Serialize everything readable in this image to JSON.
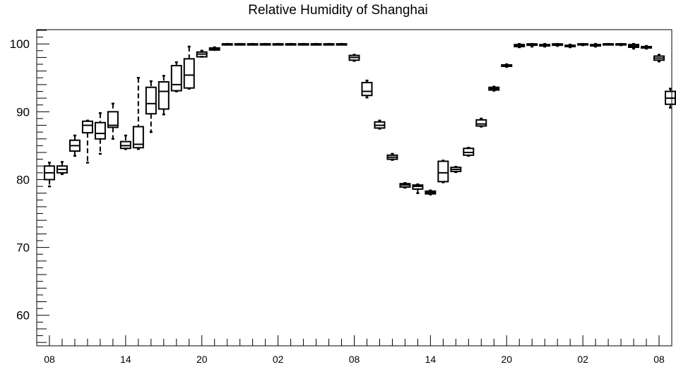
{
  "chart_data": {
    "type": "boxplot",
    "title": "Relative Humidity of Shanghai",
    "xlabel": "",
    "ylabel": "",
    "ylim": [
      55.5,
      102.1
    ],
    "y_ticks": [
      60,
      70,
      80,
      90,
      100
    ],
    "x_tick_labels": [
      "08",
      "14",
      "20",
      "02",
      "08",
      "14",
      "20",
      "02",
      "08"
    ],
    "x_tick_hours": [
      0,
      6,
      12,
      18,
      24,
      30,
      36,
      42,
      48
    ],
    "xlim": [
      -1,
      49
    ],
    "grid": false,
    "legend": "none",
    "colors": {
      "stroke": "#000000",
      "background": "#ffffff"
    },
    "boxes": [
      {
        "h": 0,
        "min": 79.0,
        "q1": 80.0,
        "median": 81.0,
        "q3": 82.0,
        "max": 82.5
      },
      {
        "h": 1,
        "min": 80.8,
        "q1": 81.0,
        "median": 81.5,
        "q3": 82.0,
        "max": 82.6
      },
      {
        "h": 2,
        "min": 83.5,
        "q1": 84.2,
        "median": 85.0,
        "q3": 85.8,
        "max": 86.5
      },
      {
        "h": 3,
        "min": 82.5,
        "q1": 86.9,
        "median": 88.0,
        "q3": 88.6,
        "max": 88.7
      },
      {
        "h": 4,
        "min": 83.8,
        "q1": 86.0,
        "median": 86.8,
        "q3": 88.4,
        "max": 89.8
      },
      {
        "h": 5,
        "min": 86.0,
        "q1": 87.7,
        "median": 88.0,
        "q3": 90.0,
        "max": 91.2
      },
      {
        "h": 6,
        "min": 84.5,
        "q1": 84.6,
        "median": 85.0,
        "q3": 85.6,
        "max": 86.5
      },
      {
        "h": 7,
        "min": 84.5,
        "q1": 84.7,
        "median": 85.2,
        "q3": 87.8,
        "max": 95.0
      },
      {
        "h": 8,
        "min": 87.0,
        "q1": 89.7,
        "median": 91.2,
        "q3": 93.6,
        "max": 94.5
      },
      {
        "h": 9,
        "min": 89.6,
        "q1": 90.4,
        "median": 93.0,
        "q3": 94.4,
        "max": 95.3
      },
      {
        "h": 10,
        "min": 93.0,
        "q1": 93.1,
        "median": 94.0,
        "q3": 96.8,
        "max": 97.3
      },
      {
        "h": 11,
        "min": 93.4,
        "q1": 93.5,
        "median": 95.4,
        "q3": 97.8,
        "max": 99.6
      },
      {
        "h": 12,
        "min": 98.1,
        "q1": 98.1,
        "median": 98.5,
        "q3": 98.8,
        "max": 99.0
      },
      {
        "h": 13,
        "min": 99.1,
        "q1": 99.1,
        "median": 99.3,
        "q3": 99.4,
        "max": 99.5
      },
      {
        "h": 14,
        "min": 100,
        "q1": 100,
        "median": 100,
        "q3": 100,
        "max": 100
      },
      {
        "h": 15,
        "min": 100,
        "q1": 100,
        "median": 100,
        "q3": 100,
        "max": 100
      },
      {
        "h": 16,
        "min": 100,
        "q1": 100,
        "median": 100,
        "q3": 100,
        "max": 100
      },
      {
        "h": 17,
        "min": 100,
        "q1": 100,
        "median": 100,
        "q3": 100,
        "max": 100
      },
      {
        "h": 18,
        "min": 100,
        "q1": 100,
        "median": 100,
        "q3": 100,
        "max": 100
      },
      {
        "h": 19,
        "min": 100,
        "q1": 100,
        "median": 100,
        "q3": 100,
        "max": 100
      },
      {
        "h": 20,
        "min": 100,
        "q1": 100,
        "median": 100,
        "q3": 100,
        "max": 100
      },
      {
        "h": 21,
        "min": 100,
        "q1": 100,
        "median": 100,
        "q3": 100,
        "max": 100
      },
      {
        "h": 22,
        "min": 100,
        "q1": 100,
        "median": 100,
        "q3": 100,
        "max": 100
      },
      {
        "h": 23,
        "min": 100,
        "q1": 100,
        "median": 100,
        "q3": 100,
        "max": 100
      },
      {
        "h": 24,
        "min": 97.5,
        "q1": 97.6,
        "median": 98.0,
        "q3": 98.3,
        "max": 98.4
      },
      {
        "h": 25,
        "min": 92.1,
        "q1": 92.4,
        "median": 93.0,
        "q3": 94.3,
        "max": 94.6
      },
      {
        "h": 26,
        "min": 87.5,
        "q1": 87.6,
        "median": 88.0,
        "q3": 88.5,
        "max": 88.7
      },
      {
        "h": 27,
        "min": 82.9,
        "q1": 83.0,
        "median": 83.3,
        "q3": 83.6,
        "max": 83.8
      },
      {
        "h": 28,
        "min": 78.8,
        "q1": 78.9,
        "median": 79.2,
        "q3": 79.4,
        "max": 79.5
      },
      {
        "h": 29,
        "min": 78.0,
        "q1": 78.6,
        "median": 79.0,
        "q3": 79.2,
        "max": 79.3
      },
      {
        "h": 30,
        "min": 77.8,
        "q1": 77.9,
        "median": 78.1,
        "q3": 78.3,
        "max": 78.4
      },
      {
        "h": 31,
        "min": 79.6,
        "q1": 79.7,
        "median": 81.0,
        "q3": 82.7,
        "max": 82.8
      },
      {
        "h": 32,
        "min": 81.1,
        "q1": 81.2,
        "median": 81.5,
        "q3": 81.8,
        "max": 81.9
      },
      {
        "h": 33,
        "min": 83.5,
        "q1": 83.6,
        "median": 84.0,
        "q3": 84.6,
        "max": 84.7
      },
      {
        "h": 34,
        "min": 87.8,
        "q1": 87.9,
        "median": 88.2,
        "q3": 88.8,
        "max": 89.0
      },
      {
        "h": 35,
        "min": 93.1,
        "q1": 93.2,
        "median": 93.4,
        "q3": 93.6,
        "max": 93.7
      },
      {
        "h": 36,
        "min": 96.6,
        "q1": 96.7,
        "median": 96.8,
        "q3": 96.9,
        "max": 97.0
      },
      {
        "h": 37,
        "min": 99.5,
        "q1": 99.6,
        "median": 99.8,
        "q3": 99.9,
        "max": 100
      },
      {
        "h": 38,
        "min": 99.6,
        "q1": 99.8,
        "median": 99.9,
        "q3": 100,
        "max": 100
      },
      {
        "h": 39,
        "min": 99.6,
        "q1": 99.7,
        "median": 99.8,
        "q3": 99.9,
        "max": 100
      },
      {
        "h": 40,
        "min": 99.7,
        "q1": 99.8,
        "median": 99.9,
        "q3": 100,
        "max": 100
      },
      {
        "h": 41,
        "min": 99.5,
        "q1": 99.6,
        "median": 99.7,
        "q3": 99.8,
        "max": 99.9
      },
      {
        "h": 42,
        "min": 99.8,
        "q1": 99.9,
        "median": 100,
        "q3": 100,
        "max": 100
      },
      {
        "h": 43,
        "min": 99.6,
        "q1": 99.7,
        "median": 99.8,
        "q3": 99.9,
        "max": 100
      },
      {
        "h": 44,
        "min": 99.9,
        "q1": 99.9,
        "median": 100,
        "q3": 100,
        "max": 100
      },
      {
        "h": 45,
        "min": 99.8,
        "q1": 99.9,
        "median": 100,
        "q3": 100,
        "max": 100
      },
      {
        "h": 46,
        "min": 99.3,
        "q1": 99.5,
        "median": 99.7,
        "q3": 99.9,
        "max": 100
      },
      {
        "h": 47,
        "min": 99.3,
        "q1": 99.4,
        "median": 99.5,
        "q3": 99.6,
        "max": 99.7
      },
      {
        "h": 48,
        "min": 97.4,
        "q1": 97.6,
        "median": 97.9,
        "q3": 98.2,
        "max": 98.4
      }
    ],
    "extra_box": {
      "min": 90.6,
      "q1": 91.1,
      "median": 92.0,
      "q3": 93.0,
      "max": 93.4
    }
  }
}
